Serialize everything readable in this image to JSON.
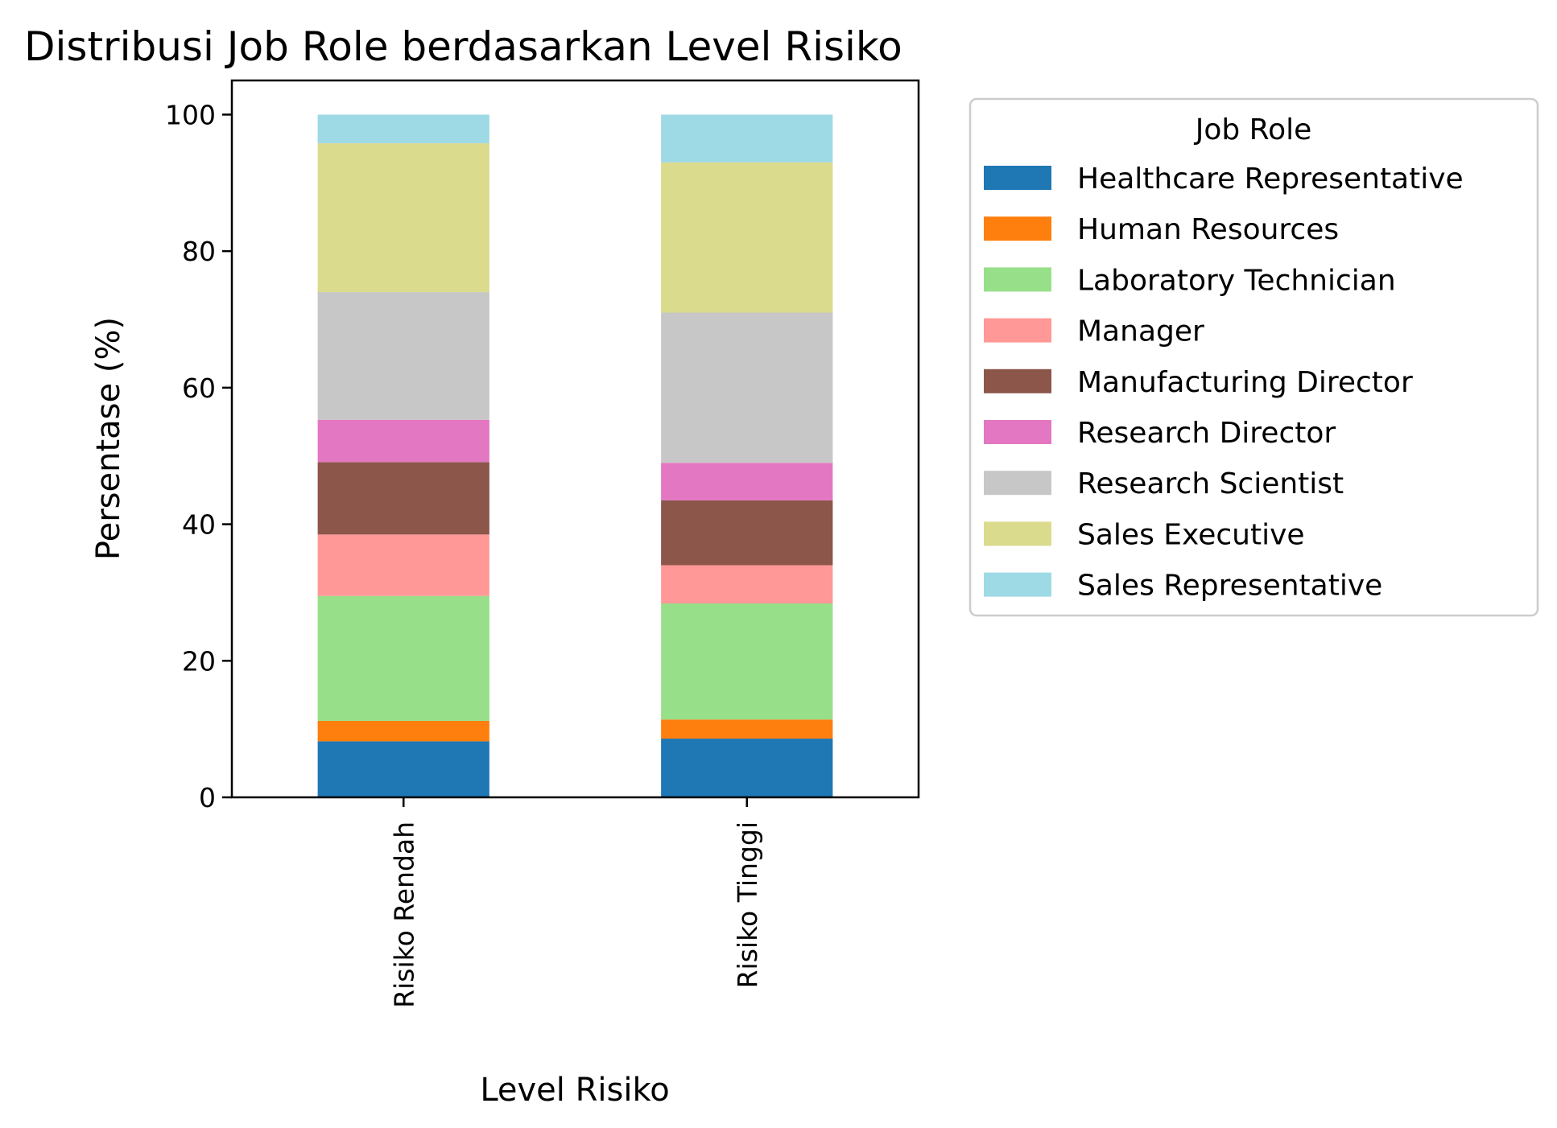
{
  "chart_data": {
    "type": "bar",
    "stacked": true,
    "title": "Distribusi Job Role berdasarkan Level Risiko",
    "xlabel": "Level Risiko",
    "ylabel": "Persentase (%)",
    "ylim": [
      0,
      105
    ],
    "yticks": [
      "0",
      "20",
      "40",
      "60",
      "80",
      "100"
    ],
    "grid": false,
    "legend_title": "Job Role",
    "legend_position": "outside-right",
    "categories": [
      "Risiko Rendah",
      "Risiko Tinggi"
    ],
    "series": [
      {
        "name": "Healthcare Representative",
        "color": "#1f77b4",
        "values": [
          8.2,
          8.6
        ]
      },
      {
        "name": "Human Resources",
        "color": "#ff7f0e",
        "values": [
          3.0,
          2.8
        ]
      },
      {
        "name": "Laboratory Technician",
        "color": "#98df8a",
        "values": [
          18.3,
          17.0
        ]
      },
      {
        "name": "Manager",
        "color": "#ff9896",
        "values": [
          9.0,
          5.6
        ]
      },
      {
        "name": "Manufacturing Director",
        "color": "#8c564b",
        "values": [
          10.6,
          9.5
        ]
      },
      {
        "name": "Research Director",
        "color": "#e377c2",
        "values": [
          6.2,
          5.5
        ]
      },
      {
        "name": "Research Scientist",
        "color": "#c7c7c7",
        "values": [
          18.7,
          22.0
        ]
      },
      {
        "name": "Sales Executive",
        "color": "#dbdb8d",
        "values": [
          21.8,
          22.0
        ]
      },
      {
        "name": "Sales Representative",
        "color": "#9edae5",
        "values": [
          4.2,
          7.0
        ]
      }
    ]
  }
}
